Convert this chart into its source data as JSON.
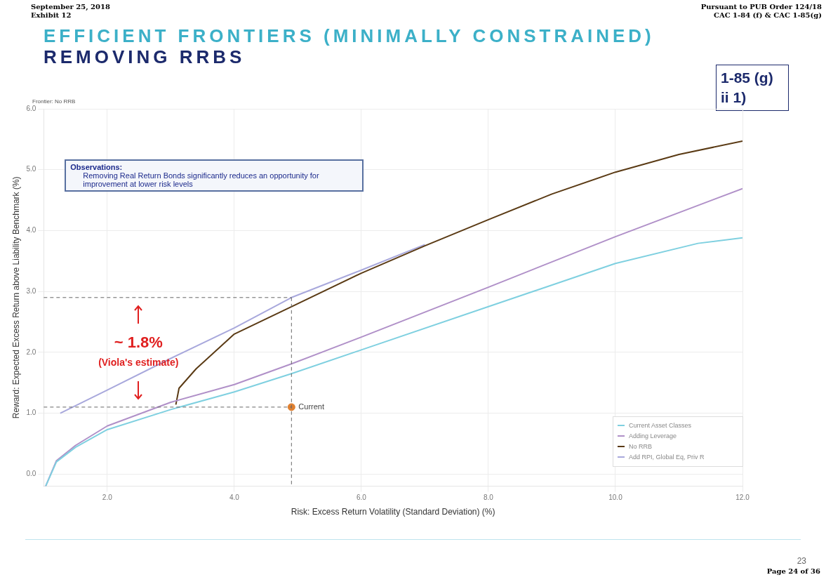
{
  "chart_data": {
    "type": "line",
    "title": "EFFICIENT FRONTIERS (MINIMALLY CONSTRAINED)",
    "subtitle": "REMOVING RRBS",
    "xlabel": "Risk: Excess Return Volatility (Standard Deviation) (%)",
    "ylabel": "Reward: Expected Excess Return above Liability Benchmark (%)",
    "xlim": [
      1,
      12
    ],
    "xticks": [
      {
        "value": 2,
        "label": "2.0"
      },
      {
        "value": 4,
        "label": "4.0"
      },
      {
        "value": 6,
        "label": "6.0"
      },
      {
        "value": 8,
        "label": "8.0"
      },
      {
        "value": 10,
        "label": "10.0"
      },
      {
        "value": 12,
        "label": "12.0"
      }
    ],
    "ylim": [
      -0.2,
      6
    ],
    "yticks": [
      {
        "value": 0,
        "label": "0.0"
      },
      {
        "value": 1,
        "label": "1.0"
      },
      {
        "value": 2,
        "label": "2.0"
      },
      {
        "value": 3,
        "label": "3.0"
      },
      {
        "value": 4,
        "label": "4.0"
      },
      {
        "value": 5,
        "label": "5.0"
      },
      {
        "value": 6,
        "label": "6.0"
      }
    ],
    "grid": true,
    "legend": "bottom right",
    "marker": "none",
    "line_style": "solid",
    "series": [
      {
        "name": "Current Asset Classes",
        "color": "#7fd0e0",
        "x": [
          1.03,
          1.2,
          1.5,
          2,
          3,
          4,
          4.9,
          6,
          8,
          10,
          11.3,
          12
        ],
        "values": [
          -0.2,
          0.2,
          0.44,
          0.73,
          1.06,
          1.35,
          1.65,
          2.04,
          2.75,
          3.46,
          3.79,
          3.88
        ]
      },
      {
        "name": "Adding Leverage",
        "color": "#b090c8",
        "x": [
          1.03,
          1.2,
          1.5,
          2,
          3,
          4,
          4.9,
          6,
          8,
          10,
          12
        ],
        "values": [
          -0.2,
          0.22,
          0.47,
          0.79,
          1.18,
          1.47,
          1.81,
          2.25,
          3.07,
          3.9,
          4.69
        ]
      },
      {
        "name": "No RRB",
        "color": "#5a3a14",
        "x": [
          3.08,
          3.13,
          3.4,
          4,
          4.9,
          6,
          7,
          8,
          9,
          10,
          11,
          12
        ],
        "values": [
          1.14,
          1.41,
          1.73,
          2.3,
          2.75,
          3.3,
          3.75,
          4.18,
          4.6,
          4.96,
          5.25,
          5.47
        ]
      },
      {
        "name": "Add RPI, Global Eq, Priv R",
        "color": "#a8a8dc",
        "x": [
          1.26,
          2,
          3,
          4,
          4.9,
          6,
          7
        ],
        "values": [
          1.0,
          1.38,
          1.9,
          2.4,
          2.9,
          3.35,
          3.77
        ]
      },
      {
        "name": "Current",
        "type": "scatter",
        "marker": "circle",
        "color": "#e08030",
        "x": [
          4.9
        ],
        "values": [
          1.1
        ]
      }
    ],
    "ref_lines": [
      {
        "axis": "y",
        "value": 2.9,
        "color": "#666666",
        "line_style": "dashed"
      },
      {
        "axis": "y",
        "value": 1.1,
        "color": "#666666",
        "line_style": "dashed"
      },
      {
        "axis": "x",
        "value": 4.9,
        "color": "#666666",
        "line_style": "dashed"
      }
    ],
    "annotations": [
      "September 25, 2018",
      "Exhibit 12",
      "Pursuant to PUB Order 124/18",
      "CAC 1-84 (f) & CAC 1-85(g)",
      "1-85 (g) ii 1)",
      "Frontier: No RRB",
      "Observations:",
      "Removing Real Return Bonds significantly reduces an opportunity for improvement at lower risk levels",
      "~ 1.8%",
      "(Viola's estimate)",
      "23",
      "Page 24 of 36"
    ]
  }
}
